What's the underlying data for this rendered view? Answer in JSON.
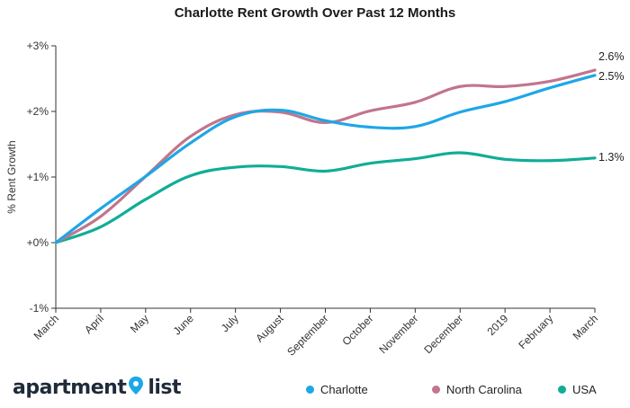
{
  "chart_data": {
    "type": "line",
    "title": "Charlotte Rent Growth Over Past 12 Months",
    "xlabel": "",
    "ylabel": "% Rent Growth",
    "categories": [
      "March",
      "April",
      "May",
      "June",
      "July",
      "August",
      "September",
      "October",
      "November",
      "December",
      "2019",
      "February",
      "March"
    ],
    "yticks": [
      "+3%",
      "+2%",
      "+1%",
      "+0%",
      "-1%"
    ],
    "ylim": [
      -1,
      3
    ],
    "grid": false,
    "legend_position": "bottom-right",
    "series": [
      {
        "name": "Charlotte",
        "color": "#1ea7e6",
        "values": [
          0.0,
          0.52,
          1.01,
          1.52,
          1.92,
          2.02,
          1.86,
          1.76,
          1.77,
          1.99,
          2.15,
          2.36,
          2.55
        ],
        "end_label": "2.5%"
      },
      {
        "name": "North Carolina",
        "color": "#c2758c",
        "values": [
          0.0,
          0.4,
          1.01,
          1.62,
          1.95,
          1.99,
          1.83,
          2.01,
          2.14,
          2.38,
          2.38,
          2.46,
          2.63
        ],
        "end_label": "2.6%"
      },
      {
        "name": "USA",
        "color": "#10ad96",
        "values": [
          0.0,
          0.24,
          0.66,
          1.02,
          1.15,
          1.16,
          1.09,
          1.21,
          1.28,
          1.37,
          1.27,
          1.25,
          1.29
        ],
        "end_label": "1.3%"
      }
    ]
  },
  "branding": {
    "logo_left": "apartment",
    "logo_right": "list",
    "logo_icon": "map-pin-icon"
  }
}
